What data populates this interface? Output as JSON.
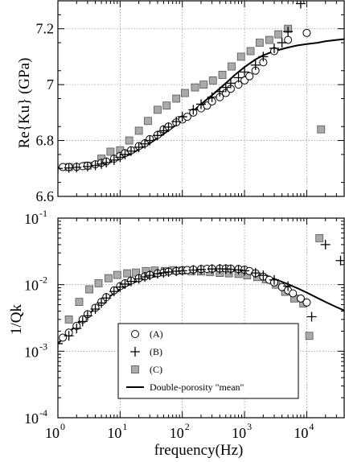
{
  "chart_data": [
    {
      "type": "scatter",
      "title": "",
      "xlabel": "",
      "ylabel": "Re{Ku} (GPa)",
      "xscale": "log",
      "xlim": [
        1,
        40000
      ],
      "ylim": [
        6.6,
        7.3
      ],
      "xticks": [
        1,
        10,
        100,
        1000,
        10000
      ],
      "yticks": [
        6.6,
        6.8,
        7,
        7.2
      ],
      "ytick_labels": [
        "6.6",
        "6.8",
        "7",
        "7.2"
      ],
      "grid": true,
      "series": [
        {
          "name": "(A)",
          "marker": "circle",
          "x": [
            1.2,
            1.5,
            2,
            2.5,
            3,
            4,
            5,
            6,
            8,
            10,
            12,
            15,
            20,
            25,
            30,
            40,
            50,
            60,
            80,
            100,
            120,
            150,
            200,
            250,
            300,
            400,
            500,
            600,
            800,
            1000,
            1200,
            1500,
            2000,
            3000,
            5000,
            10000
          ],
          "y": [
            6.705,
            6.705,
            6.706,
            6.708,
            6.71,
            6.715,
            6.72,
            6.725,
            6.735,
            6.745,
            6.755,
            6.765,
            6.78,
            6.79,
            6.805,
            6.82,
            6.84,
            6.85,
            6.865,
            6.875,
            6.885,
            6.9,
            6.915,
            6.925,
            6.94,
            6.955,
            6.97,
            6.985,
            7.0,
            7.015,
            7.03,
            7.05,
            7.08,
            7.12,
            7.16,
            7.185
          ]
        },
        {
          "name": "(B)",
          "marker": "plus",
          "x": [
            1,
            1.5,
            2,
            3,
            4,
            5,
            6,
            8,
            10,
            12,
            15,
            20,
            25,
            30,
            40,
            50,
            60,
            80,
            100,
            150,
            200,
            300,
            400,
            500,
            600,
            800,
            1000,
            1500,
            2000,
            3000,
            4000,
            5000,
            8000
          ],
          "y": [
            6.7,
            6.702,
            6.704,
            6.707,
            6.711,
            6.716,
            6.721,
            6.73,
            6.74,
            6.75,
            6.762,
            6.776,
            6.788,
            6.8,
            6.818,
            6.835,
            6.848,
            6.868,
            6.885,
            6.91,
            6.93,
            6.955,
            6.975,
            6.99,
            7.005,
            7.025,
            7.045,
            7.07,
            7.1,
            7.13,
            7.15,
            7.19,
            7.29
          ]
        },
        {
          "name": "(C)",
          "marker": "square",
          "x": [
            1.5,
            3,
            5,
            7,
            10,
            14,
            20,
            28,
            40,
            56,
            80,
            110,
            160,
            220,
            310,
            440,
            620,
            880,
            1250,
            1750,
            2500,
            3500,
            5000,
            17000
          ],
          "y": [
            6.705,
            6.71,
            6.735,
            6.76,
            6.765,
            6.8,
            6.835,
            6.87,
            6.91,
            6.925,
            6.95,
            6.97,
            6.99,
            7.0,
            7.015,
            7.035,
            7.065,
            7.1,
            7.12,
            7.15,
            7.16,
            7.18,
            7.2,
            6.84
          ]
        },
        {
          "name": "Double-porosity \"mean\"",
          "marker": "line",
          "x": [
            1,
            1.5,
            2,
            3,
            5,
            7,
            10,
            15,
            20,
            30,
            50,
            70,
            100,
            150,
            200,
            300,
            500,
            700,
            1000,
            1500,
            2000,
            3000,
            5000,
            7000,
            10000,
            15000,
            20000,
            30000,
            40000
          ],
          "y": [
            6.702,
            6.703,
            6.705,
            6.708,
            6.715,
            6.723,
            6.735,
            6.752,
            6.768,
            6.79,
            6.823,
            6.847,
            6.873,
            6.905,
            6.93,
            6.962,
            7.005,
            7.035,
            7.063,
            7.09,
            7.105,
            7.12,
            7.133,
            7.14,
            7.145,
            7.15,
            7.155,
            7.16,
            7.163
          ]
        }
      ]
    },
    {
      "type": "scatter",
      "title": "",
      "xlabel": "frequency(Hz)",
      "ylabel": "1/Qk",
      "xscale": "log",
      "yscale": "log",
      "xlim": [
        1,
        40000
      ],
      "ylim": [
        0.0001,
        0.1
      ],
      "xticks": [
        1,
        10,
        100,
        1000,
        10000
      ],
      "yticks": [
        0.0001,
        0.001,
        0.01,
        0.1
      ],
      "tick_bases": [
        "10",
        "10",
        "10",
        "10",
        "10"
      ],
      "xtick_exponents": [
        "0",
        "1",
        "2",
        "3",
        "4"
      ],
      "ytick_exponents": [
        "-4",
        "-3",
        "-2",
        "-1"
      ],
      "grid": true,
      "legend": {
        "position": "bottom-right",
        "entries": [
          "(A)",
          "(B)",
          "(C)",
          "Double-porosity  \"mean\""
        ]
      },
      "series": [
        {
          "name": "(A)",
          "marker": "circle",
          "x": [
            1.2,
            1.5,
            2,
            2.5,
            3,
            4,
            5,
            6,
            8,
            10,
            12,
            15,
            20,
            25,
            30,
            40,
            50,
            60,
            80,
            100,
            120,
            150,
            200,
            250,
            300,
            400,
            500,
            600,
            800,
            1000,
            1200,
            1500,
            2000,
            2500,
            3000,
            4000,
            5000,
            6000,
            8000,
            10000
          ],
          "y": [
            0.0016,
            0.0019,
            0.0024,
            0.003,
            0.0036,
            0.0045,
            0.0055,
            0.0065,
            0.0082,
            0.0095,
            0.0105,
            0.0115,
            0.0125,
            0.0133,
            0.014,
            0.0148,
            0.0152,
            0.0157,
            0.016,
            0.0164,
            0.0166,
            0.0169,
            0.0172,
            0.0173,
            0.0174,
            0.0175,
            0.0175,
            0.0174,
            0.0172,
            0.0168,
            0.016,
            0.0148,
            0.0132,
            0.0118,
            0.0108,
            0.0092,
            0.0082,
            0.0074,
            0.0062,
            0.0054
          ]
        },
        {
          "name": "(B)",
          "marker": "plus",
          "x": [
            1,
            1.5,
            2,
            2.5,
            3,
            4,
            5,
            6,
            8,
            10,
            12,
            15,
            20,
            25,
            30,
            40,
            50,
            60,
            80,
            100,
            150,
            200,
            300,
            400,
            500,
            600,
            800,
            1000,
            1500,
            2000,
            3000,
            5000,
            12000,
            20000,
            35000
          ],
          "y": [
            0.0013,
            0.0017,
            0.0022,
            0.0028,
            0.0034,
            0.0043,
            0.0053,
            0.0063,
            0.0079,
            0.0092,
            0.0102,
            0.0112,
            0.0122,
            0.0131,
            0.0138,
            0.0146,
            0.0151,
            0.0155,
            0.0159,
            0.0162,
            0.0166,
            0.0169,
            0.0172,
            0.0173,
            0.0172,
            0.017,
            0.0167,
            0.0162,
            0.015,
            0.0138,
            0.0118,
            0.0095,
            0.0033,
            0.04,
            0.023
          ]
        },
        {
          "name": "(C)",
          "marker": "square",
          "x": [
            1.5,
            2.2,
            3.2,
            4.5,
            6.5,
            9,
            13,
            18,
            26,
            36,
            52,
            72,
            100,
            140,
            200,
            280,
            400,
            560,
            800,
            1100,
            1600,
            2200,
            3200,
            4500,
            6300,
            8800,
            11000,
            16000
          ],
          "y": [
            0.003,
            0.0055,
            0.0085,
            0.0105,
            0.0125,
            0.014,
            0.0148,
            0.0152,
            0.016,
            0.0163,
            0.016,
            0.0165,
            0.0163,
            0.016,
            0.0158,
            0.0155,
            0.015,
            0.0148,
            0.0145,
            0.0138,
            0.013,
            0.012,
            0.01,
            0.0078,
            0.0062,
            0.0052,
            0.0017,
            0.05
          ]
        },
        {
          "name": "Double-porosity \"mean\"",
          "marker": "line",
          "x": [
            1,
            1.5,
            2,
            3,
            5,
            7,
            10,
            15,
            20,
            30,
            50,
            70,
            100,
            150,
            200,
            300,
            500,
            700,
            1000,
            1500,
            2000,
            3000,
            5000,
            7000,
            10000,
            15000,
            20000,
            30000,
            40000
          ],
          "y": [
            0.0013,
            0.0019,
            0.0025,
            0.0035,
            0.0053,
            0.0068,
            0.0085,
            0.0103,
            0.0115,
            0.0128,
            0.014,
            0.0147,
            0.0152,
            0.0157,
            0.016,
            0.0162,
            0.0162,
            0.016,
            0.0155,
            0.0145,
            0.0136,
            0.0122,
            0.0102,
            0.0089,
            0.0076,
            0.0063,
            0.0055,
            0.0046,
            0.0041
          ]
        }
      ]
    }
  ]
}
